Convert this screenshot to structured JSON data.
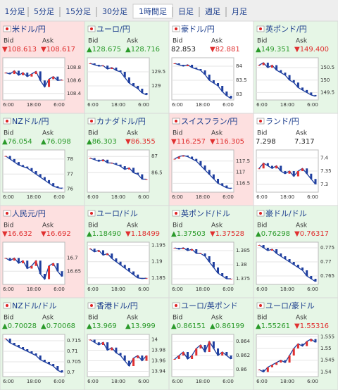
{
  "tabs": {
    "items": [
      "1分足",
      "5分足",
      "15分足",
      "30分足",
      "1時間足",
      "日足",
      "週足",
      "月足"
    ],
    "selected": 4
  },
  "labels": {
    "bid": "Bid",
    "ask": "Ask"
  },
  "xticks": [
    "6:00",
    "18:00",
    "6:00"
  ],
  "colors": {
    "up": "#e6f6e6",
    "down": "#fde0e0",
    "flat": "#ffffff",
    "line": "#1f3f9f",
    "ma": "#cc33cc",
    "rise": "#2a9a2a",
    "fall": "#e03030"
  },
  "panels": [
    {
      "name": "米ドル/円",
      "bid": "▼108.613",
      "ask": "▼108.617",
      "tone": "down",
      "ylim": [
        108.3,
        108.95
      ],
      "yticks": [
        108.8,
        108.6,
        108.4
      ],
      "values": [
        108.72,
        108.7,
        108.75,
        108.68,
        108.72,
        108.66,
        108.7,
        108.74,
        108.6,
        108.5,
        108.62,
        108.66,
        108.6,
        108.61
      ]
    },
    {
      "name": "ユーロ/円",
      "bid": "▲128.675",
      "ask": "▲128.716",
      "tone": "up",
      "ylim": [
        128.5,
        130.0
      ],
      "yticks": [
        129.5,
        129
      ],
      "values": [
        129.8,
        129.75,
        129.7,
        129.72,
        129.6,
        129.65,
        129.55,
        129.5,
        129.3,
        129.1,
        129.0,
        128.9,
        128.75,
        128.68
      ]
    },
    {
      "name": "豪ドル/円",
      "bid": "82.853",
      "ask": "▼82.881",
      "tone": "flat",
      "ylim": [
        82.8,
        84.3
      ],
      "yticks": [
        84,
        83.5,
        83
      ],
      "values": [
        84.1,
        84.05,
        84.0,
        84.05,
        83.95,
        83.9,
        83.85,
        83.7,
        83.5,
        83.4,
        83.3,
        83.1,
        82.95,
        82.85
      ]
    },
    {
      "name": "英ポンド/円",
      "bid": "▲149.351",
      "ask": "▼149.400",
      "tone": "up",
      "ylim": [
        149.2,
        150.9
      ],
      "yticks": [
        150.5,
        150,
        149.5
      ],
      "values": [
        150.6,
        150.7,
        150.5,
        150.6,
        150.4,
        150.3,
        150.2,
        150.0,
        149.9,
        149.7,
        149.6,
        149.5,
        149.4,
        149.35
      ]
    },
    {
      "name": "NZドル/円",
      "bid": "▲76.054",
      "ask": "▲76.098",
      "tone": "up",
      "ylim": [
        75.8,
        78.6
      ],
      "yticks": [
        78,
        77,
        76
      ],
      "values": [
        78.2,
        78.0,
        77.8,
        77.6,
        77.5,
        77.4,
        77.2,
        77.0,
        76.8,
        76.6,
        76.4,
        76.2,
        76.1,
        76.05
      ]
    },
    {
      "name": "カナダドル/円",
      "bid": "▲86.303",
      "ask": "▼86.355",
      "tone": "up",
      "ylim": [
        85.9,
        87.2
      ],
      "yticks": [
        87,
        86.5
      ],
      "values": [
        86.95,
        86.9,
        86.85,
        86.9,
        86.8,
        86.8,
        86.75,
        86.7,
        86.6,
        86.65,
        86.5,
        86.45,
        86.3,
        86.3
      ]
    },
    {
      "name": "スイスフラン/円",
      "bid": "▼116.257",
      "ask": "▼116.305",
      "tone": "down",
      "ylim": [
        116.1,
        118.0
      ],
      "yticks": [
        117.5,
        117,
        116.5
      ],
      "values": [
        117.6,
        117.7,
        117.75,
        117.7,
        117.6,
        117.5,
        117.3,
        117.1,
        116.9,
        116.7,
        116.5,
        116.4,
        116.3,
        116.26
      ]
    },
    {
      "name": "ランド/円",
      "bid": "7.298",
      "ask": "7.317",
      "tone": "flat",
      "ylim": [
        7.27,
        7.43
      ],
      "yticks": [
        7.4,
        7.35,
        7.3
      ],
      "values": [
        7.36,
        7.38,
        7.37,
        7.36,
        7.37,
        7.35,
        7.34,
        7.35,
        7.33,
        7.35,
        7.36,
        7.34,
        7.32,
        7.3
      ]
    },
    {
      "name": "人民元/円",
      "bid": "▼16.632",
      "ask": "▼16.692",
      "tone": "down",
      "ylim": [
        16.6,
        16.76
      ],
      "yticks": [
        16.7,
        16.65
      ],
      "values": [
        16.7,
        16.69,
        16.7,
        16.68,
        16.69,
        16.66,
        16.67,
        16.69,
        16.64,
        16.62,
        16.67,
        16.68,
        16.65,
        16.63
      ]
    },
    {
      "name": "ユーロ/ドル",
      "bid": "▲1.18490",
      "ask": "▼1.18499",
      "tone": "up",
      "ylim": [
        1.183,
        1.196
      ],
      "yticks": [
        1.195,
        1.19,
        1.185
      ],
      "values": [
        1.194,
        1.193,
        1.1935,
        1.192,
        1.1925,
        1.191,
        1.19,
        1.189,
        1.188,
        1.187,
        1.186,
        1.185,
        1.1848,
        1.1849
      ]
    },
    {
      "name": "英ポンド/ドル",
      "bid": "▲1.37503",
      "ask": "▼1.37528",
      "tone": "up",
      "ylim": [
        1.373,
        1.388
      ],
      "yticks": [
        1.385,
        1.38,
        1.375
      ],
      "values": [
        1.386,
        1.3855,
        1.386,
        1.385,
        1.3855,
        1.384,
        1.384,
        1.383,
        1.381,
        1.379,
        1.377,
        1.376,
        1.375,
        1.375
      ]
    },
    {
      "name": "豪ドル/ドル",
      "bid": "▲0.76298",
      "ask": "▼0.76317",
      "tone": "up",
      "ylim": [
        0.762,
        0.777
      ],
      "yticks": [
        0.775,
        0.77,
        0.765
      ],
      "values": [
        0.776,
        0.775,
        0.774,
        0.7745,
        0.773,
        0.772,
        0.771,
        0.77,
        0.769,
        0.768,
        0.767,
        0.765,
        0.764,
        0.763
      ]
    },
    {
      "name": "NZドル/ドル",
      "bid": "▲0.70028",
      "ask": "▲0.70068",
      "tone": "up",
      "ylim": [
        0.698,
        0.718
      ],
      "yticks": [
        0.715,
        0.71,
        0.705,
        0.7
      ],
      "values": [
        0.716,
        0.714,
        0.713,
        0.712,
        0.711,
        0.71,
        0.709,
        0.708,
        0.706,
        0.705,
        0.704,
        0.703,
        0.701,
        0.7
      ]
    },
    {
      "name": "香港ドル/円",
      "bid": "▲13.969",
      "ask": "▲13.999",
      "tone": "up",
      "ylim": [
        13.93,
        14.01
      ],
      "yticks": [
        14,
        13.98,
        13.96,
        13.94
      ],
      "values": [
        14.0,
        13.995,
        13.99,
        13.995,
        13.98,
        13.985,
        13.975,
        13.97,
        13.96,
        13.95,
        13.965,
        13.97,
        13.96,
        13.97
      ]
    },
    {
      "name": "ユーロ/英ポンド",
      "bid": "▲0.86151",
      "ask": "▲0.86199",
      "tone": "up",
      "ylim": [
        0.859,
        0.865
      ],
      "yticks": [
        0.864,
        0.862,
        0.86
      ],
      "values": [
        0.8615,
        0.862,
        0.8625,
        0.8615,
        0.862,
        0.863,
        0.8635,
        0.8625,
        0.864,
        0.863,
        0.862,
        0.8625,
        0.862,
        0.8615
      ]
    },
    {
      "name": "ユーロ/豪ドル",
      "bid": "▲1.55261",
      "ask": "▼1.55316",
      "tone": "up",
      "ylim": [
        1.538,
        1.556
      ],
      "yticks": [
        1.555,
        1.55,
        1.545,
        1.54
      ],
      "values": [
        1.541,
        1.54,
        1.542,
        1.543,
        1.544,
        1.545,
        1.544,
        1.547,
        1.55,
        1.552,
        1.551,
        1.553,
        1.554,
        1.5526
      ]
    }
  ]
}
